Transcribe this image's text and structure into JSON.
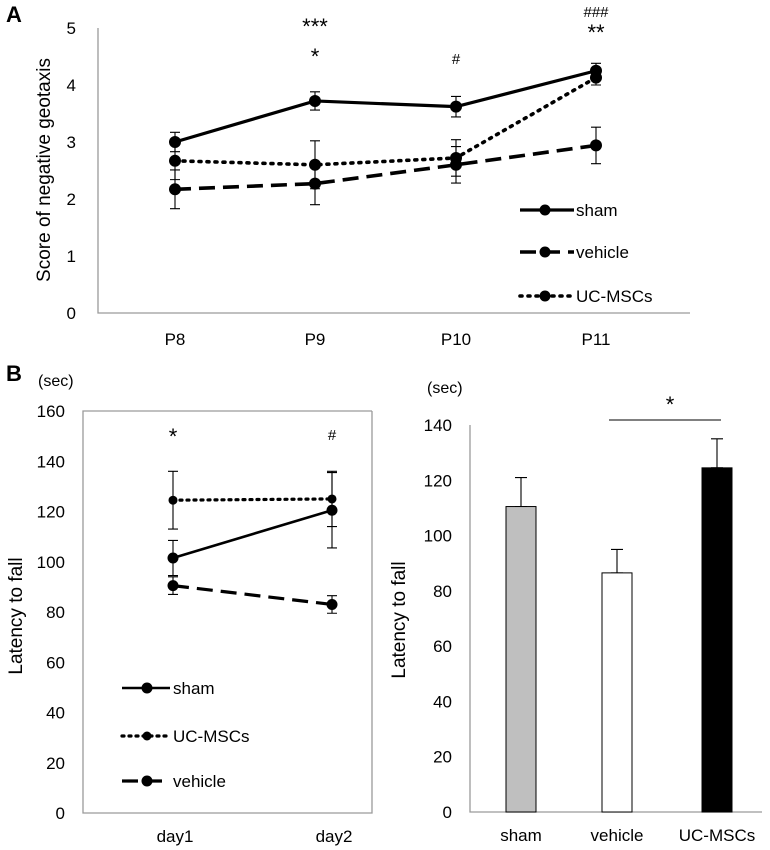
{
  "chart_data": [
    {
      "id": "A",
      "panel_label": "A",
      "type": "line",
      "title": "",
      "xlabel": "",
      "ylabel": "Score of negative geotaxis",
      "ylim": [
        0,
        5
      ],
      "yticks": [
        "0",
        "1",
        "2",
        "3",
        "4",
        "5"
      ],
      "categories": [
        "P8",
        "P9",
        "P10",
        "P11"
      ],
      "series": [
        {
          "name": "sham",
          "style": "solid",
          "values": [
            3.0,
            3.72,
            3.62,
            4.25
          ],
          "errors": [
            0.17,
            0.16,
            0.18,
            0.13
          ]
        },
        {
          "name": "vehicle",
          "style": "dashed",
          "values": [
            2.17,
            2.27,
            2.6,
            2.94
          ],
          "errors": [
            0.34,
            0.37,
            0.32,
            0.32
          ]
        },
        {
          "name": "UC-MSCs",
          "style": "dotted",
          "values": [
            2.67,
            2.6,
            2.72,
            4.13
          ],
          "errors": [
            0.33,
            0.42,
            0.32,
            0.13
          ]
        }
      ],
      "annotations": [
        {
          "category": "P9",
          "text": "***"
        },
        {
          "category": "P9",
          "text": "*"
        },
        {
          "category": "P10",
          "text": "#"
        },
        {
          "category": "P11",
          "text": "###"
        },
        {
          "category": "P11",
          "text": "**"
        }
      ],
      "legend": {
        "placement": "bottom-right",
        "order": [
          "sham",
          "vehicle",
          "UC-MSCs"
        ]
      }
    },
    {
      "id": "B1",
      "panel_label": "B",
      "type": "line",
      "title": "",
      "xlabel": "",
      "ylabel": "Latency to fall",
      "unit": "(sec)",
      "ylim": [
        0,
        160
      ],
      "yticks": [
        "0",
        "20",
        "40",
        "60",
        "80",
        "100",
        "120",
        "140",
        "160"
      ],
      "categories": [
        "day1",
        "day2"
      ],
      "series": [
        {
          "name": "sham",
          "style": "solid",
          "values": [
            101.5,
            120.5
          ],
          "errors": [
            7,
            15
          ]
        },
        {
          "name": "UC-MSCs",
          "style": "dotted",
          "values": [
            124.5,
            125
          ],
          "errors": [
            11.5,
            11
          ]
        },
        {
          "name": "vehicle",
          "style": "dashed",
          "values": [
            90.5,
            83
          ],
          "errors": [
            3.5,
            3.5
          ]
        }
      ],
      "annotations": [
        {
          "category": "day1",
          "text": "*"
        },
        {
          "category": "day2",
          "text": "#"
        }
      ],
      "legend": {
        "placement": "bottom-left",
        "order": [
          "sham",
          "UC-MSCs",
          "vehicle"
        ]
      }
    },
    {
      "id": "B2",
      "type": "bar",
      "title": "",
      "xlabel": "",
      "ylabel": "Latency to fall",
      "unit": "(sec)",
      "ylim": [
        0,
        140
      ],
      "yticks": [
        "0",
        "20",
        "40",
        "60",
        "80",
        "100",
        "120",
        "140"
      ],
      "categories": [
        "sham",
        "vehicle",
        "UC-MSCs"
      ],
      "values": [
        110.5,
        86.5,
        124.5
      ],
      "errors": [
        10.5,
        8.5,
        10.5
      ],
      "colors": [
        "#bfbfbf",
        "#ffffff",
        "#000000"
      ],
      "annotations": [
        {
          "from": "vehicle",
          "to": "UC-MSCs",
          "text": "*"
        }
      ]
    }
  ]
}
